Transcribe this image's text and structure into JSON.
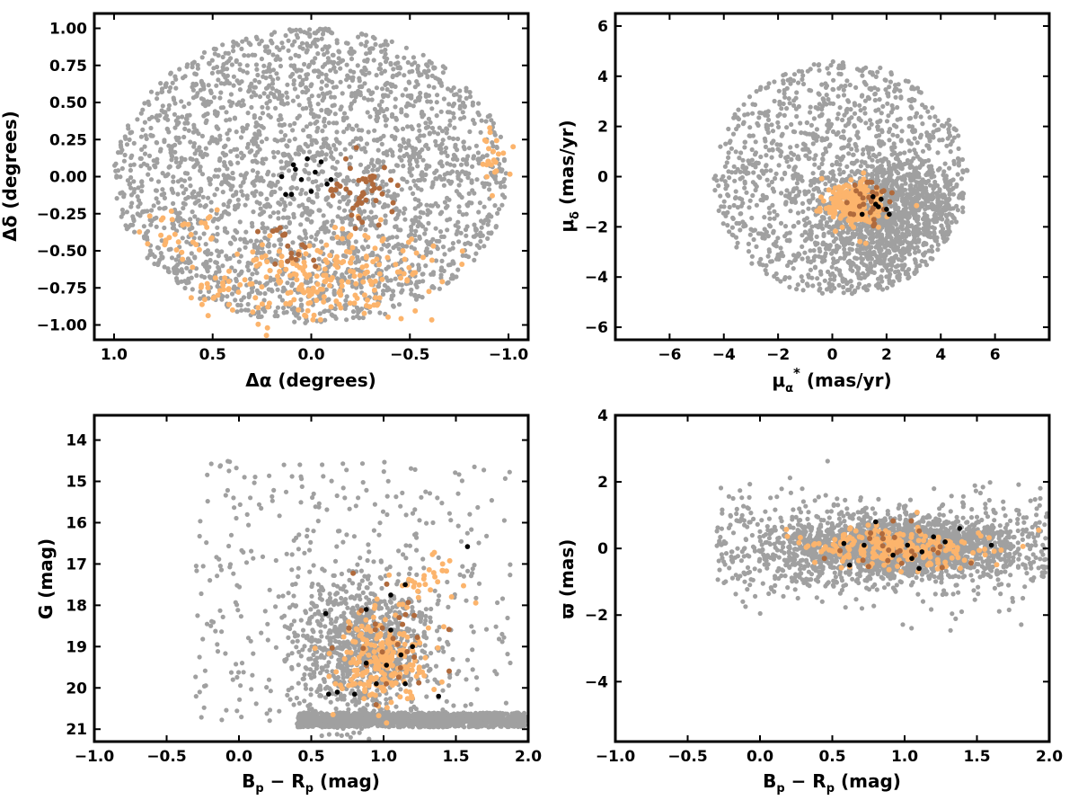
{
  "colors": {
    "field": "#a0a0a0",
    "member_light": "#fcb46c",
    "member_dark": "#b06a3c",
    "core": "#000000",
    "frame": "#000000"
  },
  "chart_data": [
    {
      "type": "scatter",
      "panel": "sky-position",
      "xlabel": "Δα (degrees)",
      "ylabel": "Δδ (degrees)",
      "xlim": [
        1.1,
        -1.1
      ],
      "ylim": [
        -1.1,
        1.1
      ],
      "xticks": [
        "1.0",
        "0.5",
        "0.0",
        "−0.5",
        "−1.0"
      ],
      "yticks": [
        "−1.00",
        "−0.75",
        "−0.50",
        "−0.25",
        "0.00",
        "0.25",
        "0.50",
        "0.75",
        "1.00"
      ],
      "field_distribution": {
        "shape": "disk",
        "center": [
          0,
          0
        ],
        "radius": 1.0,
        "count": 2600
      },
      "member_light_regions": [
        {
          "center": [
            -0.1,
            -0.68
          ],
          "spread": [
            0.28,
            0.15
          ],
          "count": 220
        },
        {
          "center": [
            0.62,
            -0.35
          ],
          "spread": [
            0.1,
            0.1
          ],
          "count": 30
        },
        {
          "center": [
            0.47,
            -0.78
          ],
          "spread": [
            0.06,
            0.05
          ],
          "count": 20
        },
        {
          "center": [
            -0.93,
            0.12
          ],
          "spread": [
            0.05,
            0.1
          ],
          "count": 22
        }
      ],
      "member_dark_regions": [
        {
          "center": [
            -0.27,
            -0.1
          ],
          "spread": [
            0.08,
            0.12
          ],
          "count": 40
        },
        {
          "center": [
            -0.12,
            -0.08
          ],
          "spread": [
            0.03,
            0.03
          ],
          "count": 6
        },
        {
          "center": [
            0.07,
            -0.52
          ],
          "spread": [
            0.07,
            0.05
          ],
          "count": 12
        },
        {
          "center": [
            0.17,
            -0.35
          ],
          "spread": [
            0.04,
            0.03
          ],
          "count": 6
        }
      ],
      "core_points": [
        [
          0.09,
          0.08
        ],
        [
          -0.02,
          0.03
        ],
        [
          -0.08,
          -0.05
        ],
        [
          0.0,
          -0.1
        ],
        [
          0.15,
          0.0
        ],
        [
          0.1,
          -0.12
        ],
        [
          -0.05,
          0.1
        ],
        [
          0.02,
          0.12
        ],
        [
          0.05,
          -0.02
        ],
        [
          0.13,
          -0.12
        ],
        [
          0.08,
          0.05
        ],
        [
          -0.1,
          -0.02
        ]
      ]
    },
    {
      "type": "scatter",
      "panel": "proper-motion",
      "xlabel": "μα* (mas/yr)",
      "ylabel": "μδ (mas/yr)",
      "xlim": [
        -8,
        8
      ],
      "ylim": [
        -6.5,
        6.5
      ],
      "xticks": [
        "−6",
        "−4",
        "−2",
        "0",
        "2",
        "4",
        "6"
      ],
      "yticks": [
        "−6",
        "−4",
        "−2",
        "0",
        "2",
        "4",
        "6"
      ],
      "field_distribution": {
        "shape": "disk",
        "center": [
          0.3,
          -0.1
        ],
        "radius": 4.7,
        "dense_center": [
          2.0,
          -1.5
        ],
        "dense_spread": [
          1.5,
          1.4
        ],
        "count": 2400
      },
      "member_light_regions": [
        {
          "center": [
            0.8,
            -1.1
          ],
          "spread": [
            0.5,
            0.45
          ],
          "count": 230
        }
      ],
      "member_dark_regions": [
        {
          "center": [
            1.4,
            -0.9
          ],
          "spread": [
            0.4,
            0.4
          ],
          "count": 30
        }
      ],
      "core_points": [
        [
          1.1,
          -1.5
        ],
        [
          1.5,
          -0.8
        ],
        [
          1.7,
          -1.2
        ],
        [
          2.0,
          -1.3
        ],
        [
          1.6,
          -1.1
        ],
        [
          2.1,
          -1.5
        ],
        [
          1.8,
          -0.9
        ]
      ]
    },
    {
      "type": "scatter",
      "panel": "color-magnitude",
      "xlabel": "Bp − Rp (mag)",
      "ylabel": "G (mag)",
      "xlim": [
        -1.0,
        2.0
      ],
      "ylim": [
        21.3,
        13.4
      ],
      "xticks": [
        "−1.0",
        "−0.5",
        "0.0",
        "0.5",
        "1.0",
        "1.5",
        "2.0"
      ],
      "yticks": [
        "21",
        "20",
        "19",
        "18",
        "17",
        "16",
        "15",
        "14"
      ],
      "field_distribution": {
        "shape": "cmd",
        "count": 2600
      },
      "member_light_regions": [
        {
          "center": [
            1.0,
            19.3
          ],
          "spread": [
            0.15,
            0.55
          ],
          "count": 230
        },
        {
          "center": [
            1.32,
            17.3
          ],
          "spread": [
            0.12,
            0.3
          ],
          "count": 30
        }
      ],
      "member_dark_regions": [
        {
          "center": [
            1.05,
            19.0
          ],
          "spread": [
            0.2,
            0.8
          ],
          "count": 28
        }
      ],
      "core_points": [
        [
          0.62,
          20.15
        ],
        [
          0.68,
          20.1
        ],
        [
          0.8,
          20.15
        ],
        [
          0.95,
          19.9
        ],
        [
          0.88,
          19.4
        ],
        [
          1.02,
          19.45
        ],
        [
          1.15,
          19.9
        ],
        [
          1.38,
          20.2
        ],
        [
          0.88,
          18.1
        ],
        [
          1.12,
          19.2
        ],
        [
          1.05,
          18.6
        ],
        [
          1.15,
          17.5
        ],
        [
          1.05,
          17.75
        ],
        [
          0.6,
          18.2
        ],
        [
          1.58,
          16.58
        ],
        [
          1.2,
          19.0
        ]
      ]
    },
    {
      "type": "scatter",
      "panel": "parallax",
      "xlabel": "Bp − Rp (mag)",
      "ylabel": "ϖ (mas)",
      "xlim": [
        -1.0,
        2.0
      ],
      "ylim": [
        -5.8,
        4.0
      ],
      "xticks": [
        "−1.0",
        "−0.5",
        "0.0",
        "0.5",
        "1.0",
        "1.5",
        "2.0"
      ],
      "yticks": [
        "4",
        "2",
        "0",
        "−2",
        "−4"
      ],
      "field_distribution": {
        "shape": "band",
        "count": 2600
      },
      "member_light_regions": [
        {
          "center": [
            0.95,
            0.0
          ],
          "spread": [
            0.3,
            0.3
          ],
          "count": 230
        }
      ],
      "member_dark_regions": [
        {
          "center": [
            1.0,
            0.0
          ],
          "spread": [
            0.25,
            0.4
          ],
          "count": 25
        }
      ],
      "core_points": [
        [
          0.58,
          0.15
        ],
        [
          0.62,
          -0.5
        ],
        [
          0.8,
          0.8
        ],
        [
          0.92,
          -0.2
        ],
        [
          1.02,
          0.1
        ],
        [
          1.12,
          -0.1
        ],
        [
          1.2,
          0.35
        ],
        [
          1.1,
          -0.6
        ],
        [
          1.38,
          0.6
        ],
        [
          1.6,
          0.1
        ],
        [
          0.72,
          0.1
        ],
        [
          1.05,
          -0.3
        ],
        [
          1.28,
          0.2
        ]
      ]
    }
  ]
}
